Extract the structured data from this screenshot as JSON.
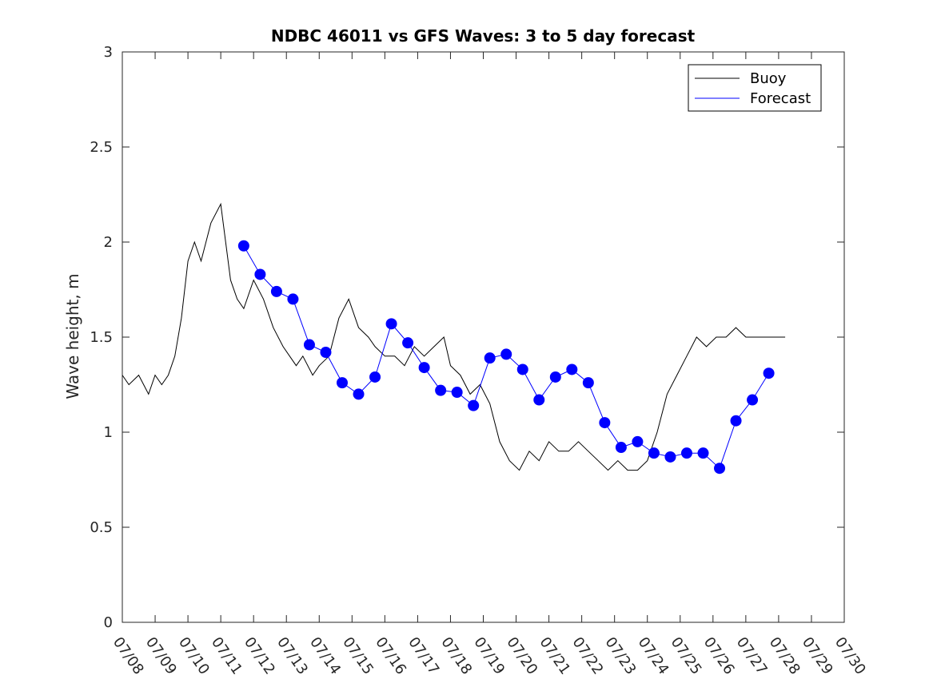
{
  "chart_data": {
    "type": "line",
    "title": "NDBC 46011 vs GFS Waves: 3 to 5 day forecast",
    "xlabel": "",
    "ylabel": "Wave height, m",
    "xlim": [
      "07/08",
      "07/30"
    ],
    "ylim": [
      0,
      3
    ],
    "yticks": [
      "0",
      "0.5",
      "1",
      "1.5",
      "2",
      "2.5",
      "3"
    ],
    "xticks": [
      "07/08",
      "07/09",
      "07/10",
      "07/11",
      "07/12",
      "07/13",
      "07/14",
      "07/15",
      "07/16",
      "07/17",
      "07/18",
      "07/19",
      "07/20",
      "07/21",
      "07/22",
      "07/23",
      "07/24",
      "07/25",
      "07/26",
      "07/27",
      "07/28",
      "07/29",
      "07/30"
    ],
    "grid": false,
    "legend": {
      "placement": "top-right",
      "entries": [
        "Buoy",
        "Forecast"
      ]
    },
    "colors": {
      "buoy": "#000000",
      "forecast": "#0000ff"
    },
    "series": [
      {
        "name": "Buoy",
        "x_unit": "days since 07/08",
        "x": [
          0,
          0.2,
          0.5,
          0.8,
          1.0,
          1.2,
          1.4,
          1.6,
          1.8,
          2.0,
          2.2,
          2.4,
          2.7,
          3.0,
          3.3,
          3.5,
          3.7,
          4.0,
          4.3,
          4.6,
          4.9,
          5.1,
          5.3,
          5.5,
          5.8,
          6.0,
          6.3,
          6.6,
          6.9,
          7.2,
          7.5,
          7.7,
          8.0,
          8.3,
          8.6,
          8.9,
          9.2,
          9.5,
          9.8,
          10.0,
          10.3,
          10.6,
          10.9,
          11.2,
          11.5,
          11.8,
          12.1,
          12.4,
          12.7,
          13.0,
          13.3,
          13.6,
          13.9,
          14.2,
          14.5,
          14.8,
          15.1,
          15.4,
          15.7,
          16.0,
          16.3,
          16.6,
          16.9,
          17.2,
          17.5,
          17.8,
          18.1,
          18.4,
          18.7,
          19.0,
          19.2,
          19.4,
          19.6,
          19.8,
          20.0,
          20.2
        ],
        "values": [
          1.3,
          1.25,
          1.3,
          1.2,
          1.3,
          1.25,
          1.3,
          1.4,
          1.6,
          1.9,
          2.0,
          1.9,
          2.1,
          2.2,
          1.8,
          1.7,
          1.65,
          1.8,
          1.7,
          1.55,
          1.45,
          1.4,
          1.35,
          1.4,
          1.3,
          1.35,
          1.4,
          1.6,
          1.7,
          1.55,
          1.5,
          1.45,
          1.4,
          1.4,
          1.35,
          1.45,
          1.4,
          1.45,
          1.5,
          1.35,
          1.3,
          1.2,
          1.25,
          1.15,
          0.95,
          0.85,
          0.8,
          0.9,
          0.85,
          0.95,
          0.9,
          0.9,
          0.95,
          0.9,
          0.85,
          0.8,
          0.85,
          0.8,
          0.8,
          0.85,
          1.0,
          1.2,
          1.3,
          1.4,
          1.5,
          1.45,
          1.5,
          1.5,
          1.55,
          1.5,
          1.5,
          1.5,
          1.5,
          1.5,
          1.5,
          1.5
        ]
      },
      {
        "name": "Forecast",
        "x_unit": "days since 07/08",
        "x": [
          3.7,
          4.2,
          4.7,
          5.2,
          5.7,
          6.2,
          6.7,
          7.2,
          7.7,
          8.2,
          8.7,
          9.2,
          9.7,
          10.2,
          10.7,
          11.2,
          11.7,
          12.2,
          12.7,
          13.2,
          13.7,
          14.2,
          14.7,
          15.2,
          15.7,
          16.2,
          16.7,
          17.2,
          17.7,
          18.2,
          18.7,
          19.2,
          19.7
        ],
        "values": [
          1.98,
          1.83,
          1.74,
          1.7,
          1.46,
          1.42,
          1.26,
          1.2,
          1.29,
          1.57,
          1.47,
          1.34,
          1.22,
          1.21,
          1.14,
          1.39,
          1.41,
          1.33,
          1.17,
          1.29,
          1.33,
          1.26,
          1.05,
          0.92,
          0.95,
          0.89,
          0.87,
          0.89,
          0.89,
          0.81,
          1.06,
          1.17,
          1.31
        ]
      }
    ]
  }
}
